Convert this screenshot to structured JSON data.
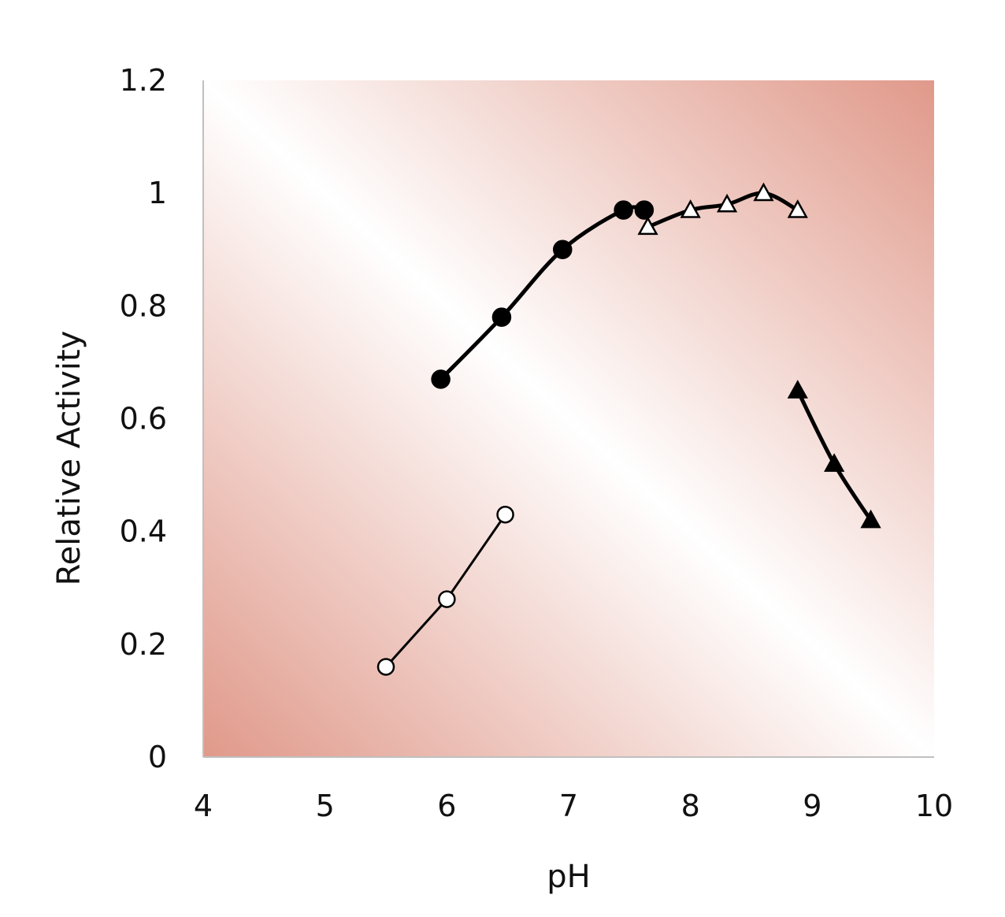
{
  "chart_data": {
    "type": "scatter",
    "title": "",
    "xlabel": "pH",
    "ylabel": "Relative Activity",
    "xlim": [
      4,
      10
    ],
    "ylim": [
      0,
      1.2
    ],
    "x_ticks": [
      4,
      5,
      6,
      7,
      8,
      9,
      10
    ],
    "y_ticks": [
      0,
      0.2,
      0.4,
      0.6,
      0.8,
      1,
      1.2
    ],
    "x_tick_labels": [
      "4",
      "5",
      "6",
      "7",
      "8",
      "9",
      "10"
    ],
    "y_tick_labels": [
      "0",
      "0.2",
      "0.4",
      "0.6",
      "0.8",
      "1",
      "1.2"
    ],
    "grid": false,
    "background": "diagonal gradient (light red to white to light red)",
    "colors": {
      "gradient_edge": "#e0998a",
      "gradient_mid": "#ffffff",
      "axis": "#c0c0c0",
      "series": "#000000"
    },
    "series": [
      {
        "marker": "open-circle",
        "line_width": "thin",
        "x": [
          5.5,
          6.0,
          6.48
        ],
        "y": [
          0.16,
          0.28,
          0.43
        ]
      },
      {
        "marker": "filled-circle",
        "line_width": "thick",
        "x": [
          5.95,
          6.45,
          6.95,
          7.45,
          7.62
        ],
        "y": [
          0.67,
          0.78,
          0.9,
          0.97,
          0.97
        ]
      },
      {
        "marker": "open-triangle",
        "line_width": "thick",
        "x": [
          7.65,
          8.0,
          8.3,
          8.6,
          8.88
        ],
        "y": [
          0.94,
          0.97,
          0.98,
          1.0,
          0.97
        ]
      },
      {
        "marker": "filled-triangle",
        "line_width": "thick",
        "x": [
          8.88,
          9.18,
          9.48
        ],
        "y": [
          0.65,
          0.52,
          0.42
        ]
      }
    ]
  }
}
